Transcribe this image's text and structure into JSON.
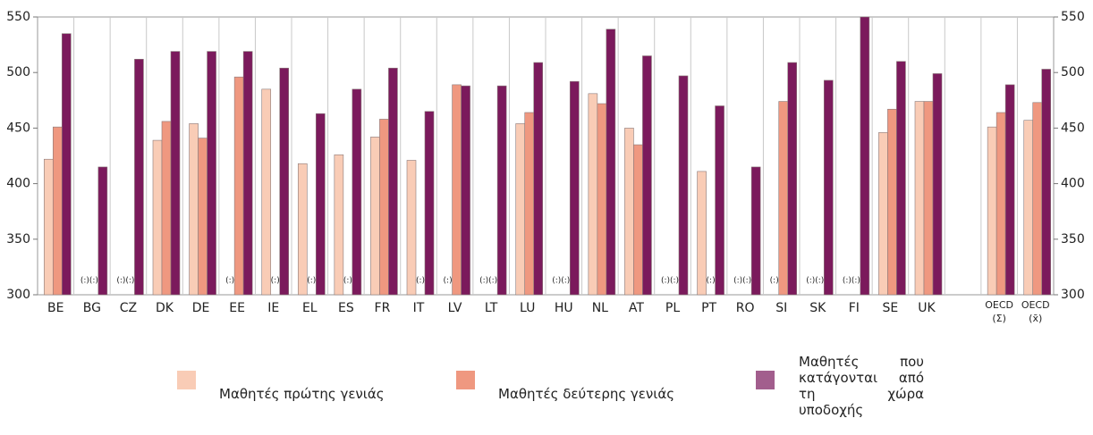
{
  "chart_data": {
    "type": "bar",
    "categories": [
      "BE",
      "BG",
      "CZ",
      "DK",
      "DE",
      "EE",
      "IE",
      "EL",
      "ES",
      "FR",
      "IT",
      "LV",
      "LT",
      "LU",
      "HU",
      "NL",
      "AT",
      "PL",
      "PT",
      "RO",
      "SI",
      "SK",
      "FI",
      "SE",
      "UK",
      null,
      "OECD (Σ)",
      "OECD (x̄)"
    ],
    "series": [
      {
        "name": "Μαθητές πρώτης γενιάς",
        "color": "#f9ccb6",
        "values": [
          422,
          null,
          null,
          439,
          454,
          null,
          485,
          418,
          426,
          442,
          421,
          null,
          null,
          454,
          null,
          481,
          450,
          null,
          411,
          null,
          null,
          null,
          null,
          446,
          474,
          null,
          451,
          457
        ]
      },
      {
        "name": "Μαθητές δεύτερης γενιάς",
        "color": "#ef9880",
        "values": [
          451,
          null,
          null,
          456,
          441,
          496,
          null,
          null,
          null,
          458,
          null,
          489,
          null,
          464,
          null,
          472,
          435,
          null,
          null,
          null,
          474,
          null,
          null,
          467,
          474,
          null,
          464,
          473
        ]
      },
      {
        "name": "Μαθητές που κατάγονται από τη χώρα υποδοχής",
        "color": "#7b1a5c",
        "values": [
          535,
          415,
          512,
          519,
          519,
          519,
          504,
          463,
          485,
          504,
          465,
          488,
          488,
          509,
          492,
          539,
          515,
          497,
          470,
          415,
          509,
          493,
          550,
          510,
          499,
          null,
          489,
          503
        ]
      }
    ],
    "missing_label": "(:)",
    "ylim": [
      300,
      550
    ],
    "yticks": [
      300,
      350,
      400,
      450,
      500,
      550
    ],
    "y2lim": [
      300,
      550
    ],
    "y2ticks": [
      300,
      350,
      400,
      450,
      500,
      550
    ],
    "grid": true,
    "legend": "bottom"
  }
}
